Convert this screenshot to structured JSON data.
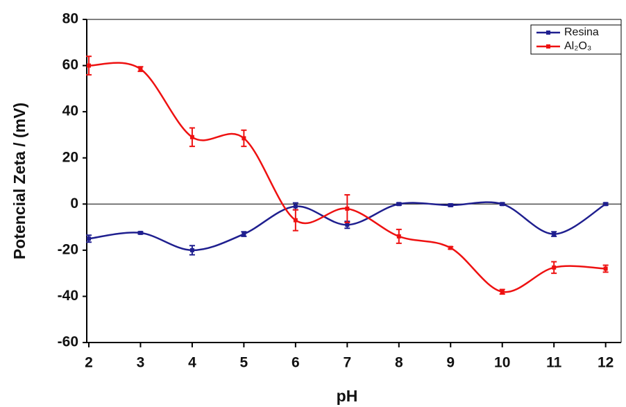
{
  "chart_data": {
    "type": "line",
    "x_label": "pH",
    "y_label": "Potencial Zeta / (mV)",
    "x": [
      2,
      3,
      4,
      5,
      6,
      7,
      8,
      9,
      10,
      11,
      12
    ],
    "series": [
      {
        "name": "Resina",
        "color": "#1f1f8f",
        "values": [
          -15,
          -12.5,
          -20,
          -13,
          -1,
          -9,
          0,
          -0.5,
          0,
          -13,
          0
        ],
        "errors": [
          1.5,
          0.5,
          2,
          1,
          1.5,
          1.5,
          0.5,
          0.5,
          0.5,
          1,
          0.5
        ]
      },
      {
        "name": "Al₂O₃",
        "color": "#ee1111",
        "values": [
          60,
          58.5,
          29,
          28.5,
          -7,
          -2,
          -14,
          -19,
          -38,
          -27.5,
          -28
        ],
        "errors": [
          4,
          1,
          4,
          3.5,
          4.5,
          6,
          3,
          0.5,
          1,
          2.5,
          1.5
        ]
      }
    ],
    "xlim": [
      1.96,
      12.3
    ],
    "ylim": [
      -60,
      80
    ],
    "xticks": [
      2,
      3,
      4,
      5,
      6,
      7,
      8,
      9,
      10,
      11,
      12
    ],
    "yticks": [
      -60,
      -40,
      -20,
      0,
      20,
      40,
      60,
      80
    ],
    "legend": "upper right",
    "grid": false
  }
}
